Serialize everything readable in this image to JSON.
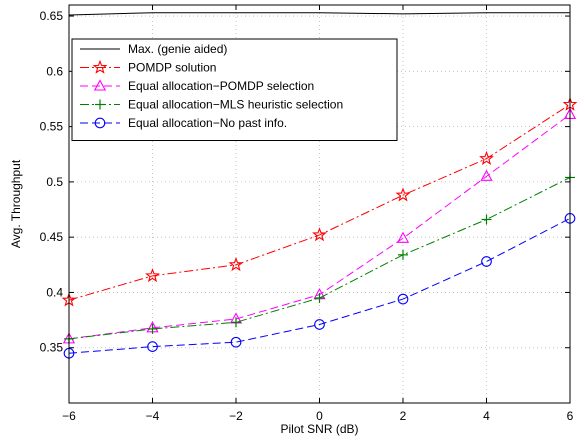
{
  "chart_data": {
    "type": "line",
    "title": "",
    "xlabel": "Pilot SNR (dB)",
    "ylabel": "Avg. Throughput",
    "xlim": [
      -6,
      6
    ],
    "ylim": [
      0.3,
      0.66
    ],
    "xticks": [
      -6,
      -4,
      -2,
      0,
      2,
      4,
      6
    ],
    "yticks": [
      0.35,
      0.4,
      0.45,
      0.5,
      0.55,
      0.6,
      0.65
    ],
    "xtick_labels": [
      "−6",
      "−4",
      "−2",
      "0",
      "2",
      "4",
      "6"
    ],
    "ytick_labels": [
      "0.35",
      "0.4",
      "0.45",
      "0.5",
      "0.55",
      "0.6",
      "0.65"
    ],
    "grid": true,
    "legend_position": "top-left",
    "x": [
      -6,
      -4,
      -2,
      0,
      2,
      4,
      6
    ],
    "series": [
      {
        "name": "Max. (genie aided)",
        "color": "#000000",
        "dash": "solid",
        "marker": "none",
        "values": [
          0.651,
          0.653,
          0.653,
          0.653,
          0.652,
          0.653,
          0.653
        ]
      },
      {
        "name": "POMDP solution",
        "color": "#ff0000",
        "dash": "dashdot",
        "marker": "star",
        "values": [
          0.393,
          0.415,
          0.425,
          0.452,
          0.488,
          0.521,
          0.57
        ]
      },
      {
        "name": "Equal allocation−POMDP selection",
        "color": "#ff00ff",
        "dash": "dashed",
        "marker": "triangle",
        "values": [
          0.358,
          0.368,
          0.376,
          0.398,
          0.449,
          0.505,
          0.561
        ]
      },
      {
        "name": "Equal allocation−MLS heuristic selection",
        "color": "#008000",
        "dash": "dashdot",
        "marker": "plus",
        "values": [
          0.358,
          0.367,
          0.373,
          0.395,
          0.434,
          0.466,
          0.504
        ]
      },
      {
        "name": "Equal allocation−No past info.",
        "color": "#0000ff",
        "dash": "dashed",
        "marker": "circle",
        "values": [
          0.345,
          0.351,
          0.355,
          0.371,
          0.394,
          0.428,
          0.467
        ]
      }
    ]
  }
}
